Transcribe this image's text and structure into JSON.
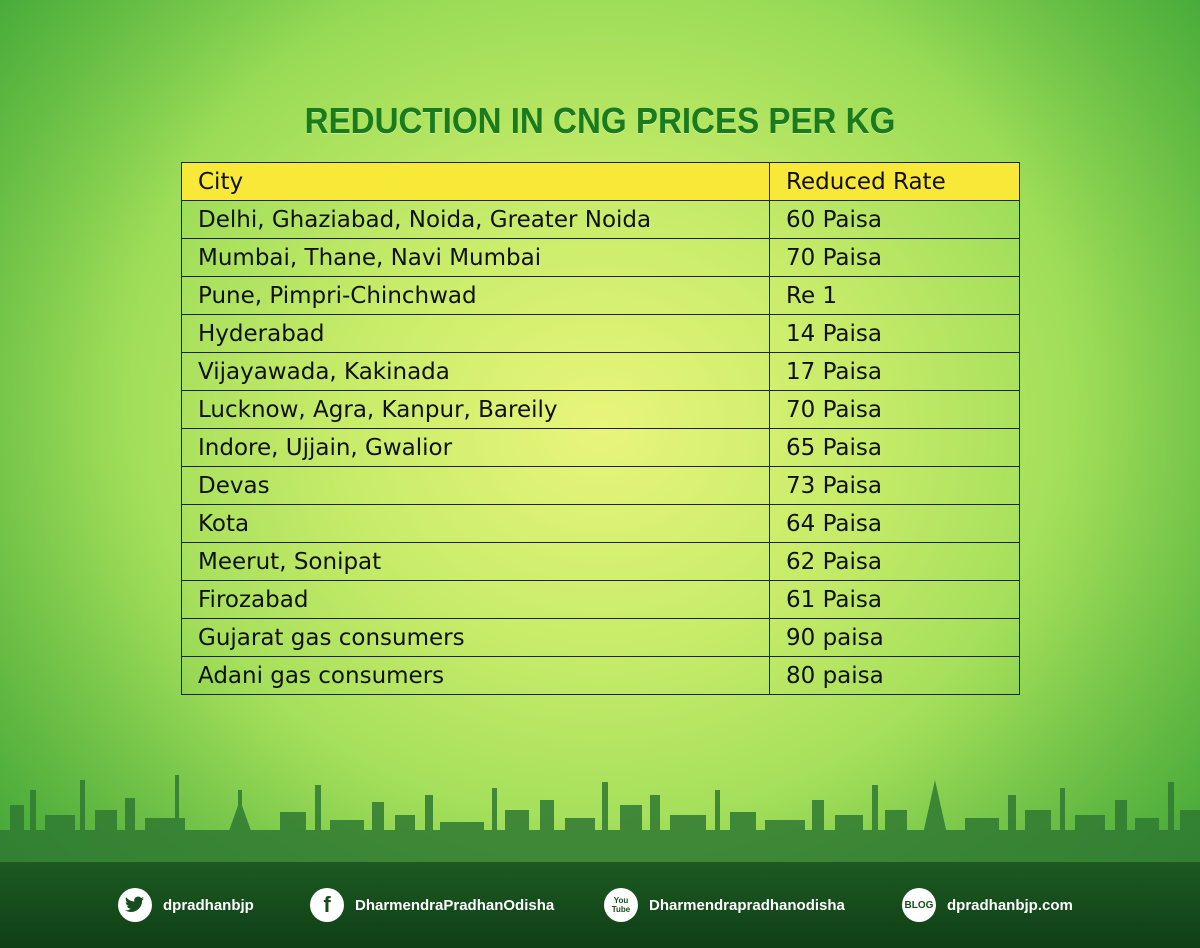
{
  "title": "REDUCTION IN CNG PRICES PER KG",
  "table": {
    "headers": [
      "City",
      "Reduced Rate"
    ],
    "rows": [
      [
        "Delhi, Ghaziabad, Noida, Greater Noida",
        "60 Paisa"
      ],
      [
        "Mumbai, Thane, Navi Mumbai",
        "70 Paisa"
      ],
      [
        "Pune, Pimpri-Chinchwad",
        "Re 1"
      ],
      [
        "Hyderabad",
        "14 Paisa"
      ],
      [
        "Vijayawada, Kakinada",
        "17 Paisa"
      ],
      [
        "Lucknow, Agra, Kanpur, Bareily",
        "70 Paisa"
      ],
      [
        "Indore, Ujjain, Gwalior",
        "65 Paisa"
      ],
      [
        "Devas",
        "73 Paisa"
      ],
      [
        "Kota",
        "64 Paisa"
      ],
      [
        "Meerut, Sonipat",
        "62 Paisa"
      ],
      [
        "Firozabad",
        "61 Paisa"
      ],
      [
        "Gujarat gas consumers",
        "90 paisa"
      ],
      [
        "Adani gas consumers",
        "80 paisa"
      ]
    ]
  },
  "footer": {
    "twitter": {
      "icon": "twitter-icon",
      "label": "dpradhanbjp"
    },
    "facebook": {
      "icon": "facebook-icon",
      "glyph": "f",
      "label": "DharmendraPradhanOdisha"
    },
    "youtube": {
      "icon": "youtube-icon",
      "glyph": "You Tube",
      "label": "Dharmendrapradhanodisha"
    },
    "blog": {
      "icon": "blog-icon",
      "glyph": "BLOG",
      "label": "dpradhanbjp.com"
    }
  },
  "colors": {
    "title": "#1a7a1e",
    "header_row": "#f8e838",
    "footer": "#174d1c",
    "skyline": "#2f7a32"
  }
}
